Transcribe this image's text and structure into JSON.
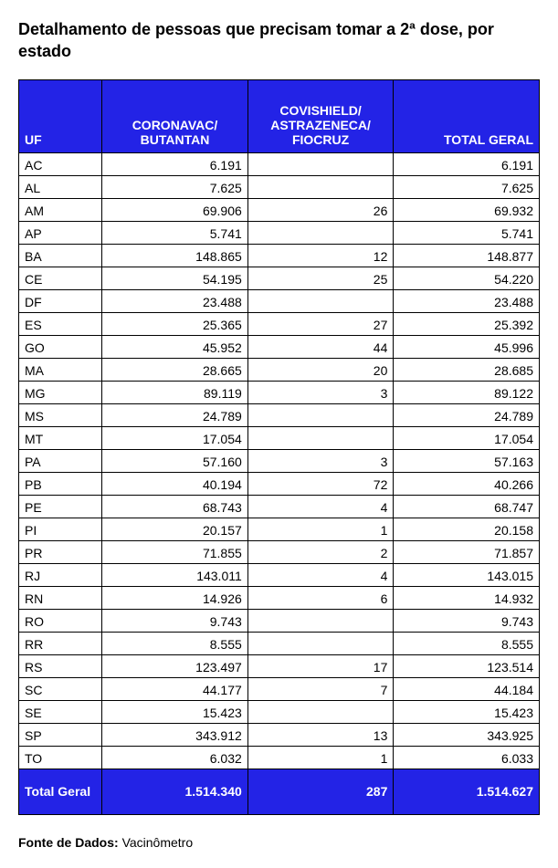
{
  "title": "Detalhamento de pessoas que precisam tomar a 2ª dose, por estado",
  "columns": {
    "uf": "UF",
    "coronavac": "CORONAVAC/ BUTANTAN",
    "covishield": "COVISHIELD/ ASTRAZENECA/ FIOCRUZ",
    "total": "TOTAL GERAL"
  },
  "rows": [
    {
      "uf": "AC",
      "cv": "6.191",
      "az": "",
      "tot": "6.191"
    },
    {
      "uf": "AL",
      "cv": "7.625",
      "az": "",
      "tot": "7.625"
    },
    {
      "uf": "AM",
      "cv": "69.906",
      "az": "26",
      "tot": "69.932"
    },
    {
      "uf": "AP",
      "cv": "5.741",
      "az": "",
      "tot": "5.741"
    },
    {
      "uf": "BA",
      "cv": "148.865",
      "az": "12",
      "tot": "148.877"
    },
    {
      "uf": "CE",
      "cv": "54.195",
      "az": "25",
      "tot": "54.220"
    },
    {
      "uf": "DF",
      "cv": "23.488",
      "az": "",
      "tot": "23.488"
    },
    {
      "uf": "ES",
      "cv": "25.365",
      "az": "27",
      "tot": "25.392"
    },
    {
      "uf": "GO",
      "cv": "45.952",
      "az": "44",
      "tot": "45.996"
    },
    {
      "uf": "MA",
      "cv": "28.665",
      "az": "20",
      "tot": "28.685"
    },
    {
      "uf": "MG",
      "cv": "89.119",
      "az": "3",
      "tot": "89.122"
    },
    {
      "uf": "MS",
      "cv": "24.789",
      "az": "",
      "tot": "24.789"
    },
    {
      "uf": "MT",
      "cv": "17.054",
      "az": "",
      "tot": "17.054"
    },
    {
      "uf": "PA",
      "cv": "57.160",
      "az": "3",
      "tot": "57.163"
    },
    {
      "uf": "PB",
      "cv": "40.194",
      "az": "72",
      "tot": "40.266"
    },
    {
      "uf": "PE",
      "cv": "68.743",
      "az": "4",
      "tot": "68.747"
    },
    {
      "uf": "PI",
      "cv": "20.157",
      "az": "1",
      "tot": "20.158"
    },
    {
      "uf": "PR",
      "cv": "71.855",
      "az": "2",
      "tot": "71.857"
    },
    {
      "uf": "RJ",
      "cv": "143.011",
      "az": "4",
      "tot": "143.015"
    },
    {
      "uf": "RN",
      "cv": "14.926",
      "az": "6",
      "tot": "14.932"
    },
    {
      "uf": "RO",
      "cv": "9.743",
      "az": "",
      "tot": "9.743"
    },
    {
      "uf": "RR",
      "cv": "8.555",
      "az": "",
      "tot": "8.555"
    },
    {
      "uf": "RS",
      "cv": "123.497",
      "az": "17",
      "tot": "123.514"
    },
    {
      "uf": "SC",
      "cv": "44.177",
      "az": "7",
      "tot": "44.184"
    },
    {
      "uf": "SE",
      "cv": "15.423",
      "az": "",
      "tot": "15.423"
    },
    {
      "uf": "SP",
      "cv": "343.912",
      "az": "13",
      "tot": "343.925"
    },
    {
      "uf": "TO",
      "cv": "6.032",
      "az": "1",
      "tot": "6.033"
    }
  ],
  "grand_total": {
    "label": "Total Geral",
    "cv": "1.514.340",
    "az": "287",
    "tot": "1.514.627"
  },
  "source": {
    "label": "Fonte de Dados:",
    "value": "Vacinômetro"
  },
  "style": {
    "header_bg": "#2323e6",
    "header_fg": "#ffffff",
    "border": "#000000",
    "page_bg": "#ffffff"
  }
}
